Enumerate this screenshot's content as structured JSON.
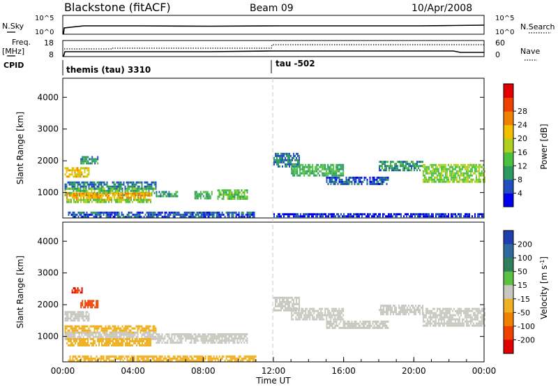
{
  "header": {
    "station": "Blackstone (fitACF)",
    "beam": "Beam 09",
    "date": "10/Apr/2008"
  },
  "status_panels": {
    "nsky_label": "N.Sky",
    "nsearch_label": "N.Search",
    "noise_ticks_left": [
      "10^5",
      "10^0"
    ],
    "noise_ticks_right": [
      "10^5",
      "10^0"
    ],
    "freq_label": "Freq.",
    "freq_unit": "[MHz]",
    "nave_label": "Nave",
    "freq_ticks": [
      "18",
      "8"
    ],
    "nave_ticks": [
      "60",
      "0"
    ],
    "cpid_label": "CPID",
    "cpid_segments": [
      {
        "name": "themis (tau) 3310",
        "start_hour": 0.0
      },
      {
        "name": "tau -502",
        "start_hour": 12.0
      }
    ]
  },
  "colors": {
    "power_scale": [
      "#0000f0",
      "#2050c0",
      "#2a9a60",
      "#4cc040",
      "#b0d020",
      "#f0c000",
      "#f08000",
      "#f04000",
      "#e00000"
    ],
    "velocity_scale": [
      "#1f3fae",
      "#2f6a9e",
      "#2f7f5a",
      "#5cc040",
      "#c8c8c0",
      "#f0b020",
      "#f08000",
      "#f04000",
      "#e00000"
    ],
    "ground_scatter": "#c8c8c0"
  },
  "chart_data": [
    {
      "type": "heatmap",
      "name": "power",
      "xlabel": "",
      "ylabel": "Slant Range [km]",
      "xlim": [
        0,
        24
      ],
      "ylim": [
        200,
        4600
      ],
      "yticks": [
        1000,
        2000,
        3000,
        4000
      ],
      "colorbar": {
        "label": "Power [dB]",
        "ticks": [
          "4",
          "8",
          "12",
          "16",
          "20",
          "24",
          "28"
        ],
        "range": [
          0,
          32
        ]
      },
      "echo_regions": [
        {
          "t0": 0.1,
          "t1": 1.5,
          "r0": 1500,
          "r1": 1800,
          "level": 22
        },
        {
          "t0": 1.0,
          "t1": 2.0,
          "r0": 1900,
          "r1": 2150,
          "level": 10
        },
        {
          "t0": 0.1,
          "t1": 5.3,
          "r0": 1150,
          "r1": 1350,
          "level": 8
        },
        {
          "t0": 0.1,
          "t1": 5.3,
          "r0": 950,
          "r1": 1150,
          "level": 14
        },
        {
          "t0": 0.2,
          "t1": 5.0,
          "r0": 800,
          "r1": 1000,
          "level": 24
        },
        {
          "t0": 0.2,
          "t1": 5.0,
          "r0": 700,
          "r1": 800,
          "level": 16
        },
        {
          "t0": 5.3,
          "t1": 6.5,
          "r0": 900,
          "r1": 1050,
          "level": 10
        },
        {
          "t0": 7.5,
          "t1": 8.5,
          "r0": 850,
          "r1": 1050,
          "level": 12
        },
        {
          "t0": 8.8,
          "t1": 10.5,
          "r0": 800,
          "r1": 1100,
          "level": 14
        },
        {
          "t0": 0.3,
          "t1": 11.0,
          "r0": 230,
          "r1": 400,
          "level": 6
        },
        {
          "t0": 12.0,
          "t1": 13.5,
          "r0": 1850,
          "r1": 2250,
          "level": 8
        },
        {
          "t0": 13.0,
          "t1": 16.0,
          "r0": 1550,
          "r1": 1900,
          "level": 12
        },
        {
          "t0": 15.0,
          "t1": 18.5,
          "r0": 1250,
          "r1": 1500,
          "level": 6
        },
        {
          "t0": 18.0,
          "t1": 20.5,
          "r0": 1700,
          "r1": 2000,
          "level": 10
        },
        {
          "t0": 20.5,
          "t1": 24.0,
          "r0": 1350,
          "r1": 1900,
          "level": 16
        },
        {
          "t0": 12.0,
          "t1": 24.0,
          "r0": 230,
          "r1": 350,
          "level": 4
        }
      ]
    },
    {
      "type": "heatmap",
      "name": "velocity",
      "xlabel": "Time UT",
      "ylabel": "Slant Range [km]",
      "xlim": [
        0,
        24
      ],
      "ylim": [
        200,
        4600
      ],
      "xticks": [
        "00:00",
        "04:00",
        "08:00",
        "12:00",
        "16:00",
        "20:00",
        "00:00"
      ],
      "yticks": [
        1000,
        2000,
        3000,
        4000
      ],
      "colorbar": {
        "label": "Velocity [m s^-1]",
        "ticks": [
          "200",
          "100",
          "50",
          "15",
          "-15",
          "-50",
          "-100",
          "-200"
        ],
        "range": [
          -250,
          250
        ]
      },
      "echo_regions": [
        {
          "t0": 0.1,
          "t1": 1.5,
          "r0": 1500,
          "r1": 1800,
          "value": 0
        },
        {
          "t0": 1.0,
          "t1": 2.0,
          "r0": 1900,
          "r1": 2150,
          "value": -150
        },
        {
          "t0": 0.5,
          "t1": 1.1,
          "r0": 2400,
          "r1": 2550,
          "value": -200
        },
        {
          "t0": 0.1,
          "t1": 5.3,
          "r0": 1150,
          "r1": 1350,
          "value": -30
        },
        {
          "t0": 0.1,
          "t1": 5.3,
          "r0": 950,
          "r1": 1150,
          "value": 0
        },
        {
          "t0": 0.2,
          "t1": 5.0,
          "r0": 700,
          "r1": 950,
          "value": -40
        },
        {
          "t0": 5.3,
          "t1": 10.5,
          "r0": 800,
          "r1": 1100,
          "value": 0
        },
        {
          "t0": 0.3,
          "t1": 11.0,
          "r0": 230,
          "r1": 400,
          "value": -40
        },
        {
          "t0": 12.0,
          "t1": 13.5,
          "r0": 1850,
          "r1": 2250,
          "value": 0
        },
        {
          "t0": 13.0,
          "t1": 16.0,
          "r0": 1550,
          "r1": 1900,
          "value": 0
        },
        {
          "t0": 15.0,
          "t1": 18.5,
          "r0": 1250,
          "r1": 1500,
          "value": 0
        },
        {
          "t0": 18.0,
          "t1": 20.5,
          "r0": 1700,
          "r1": 2000,
          "value": 0
        },
        {
          "t0": 20.5,
          "t1": 24.0,
          "r0": 1350,
          "r1": 1900,
          "value": 0
        }
      ]
    }
  ]
}
